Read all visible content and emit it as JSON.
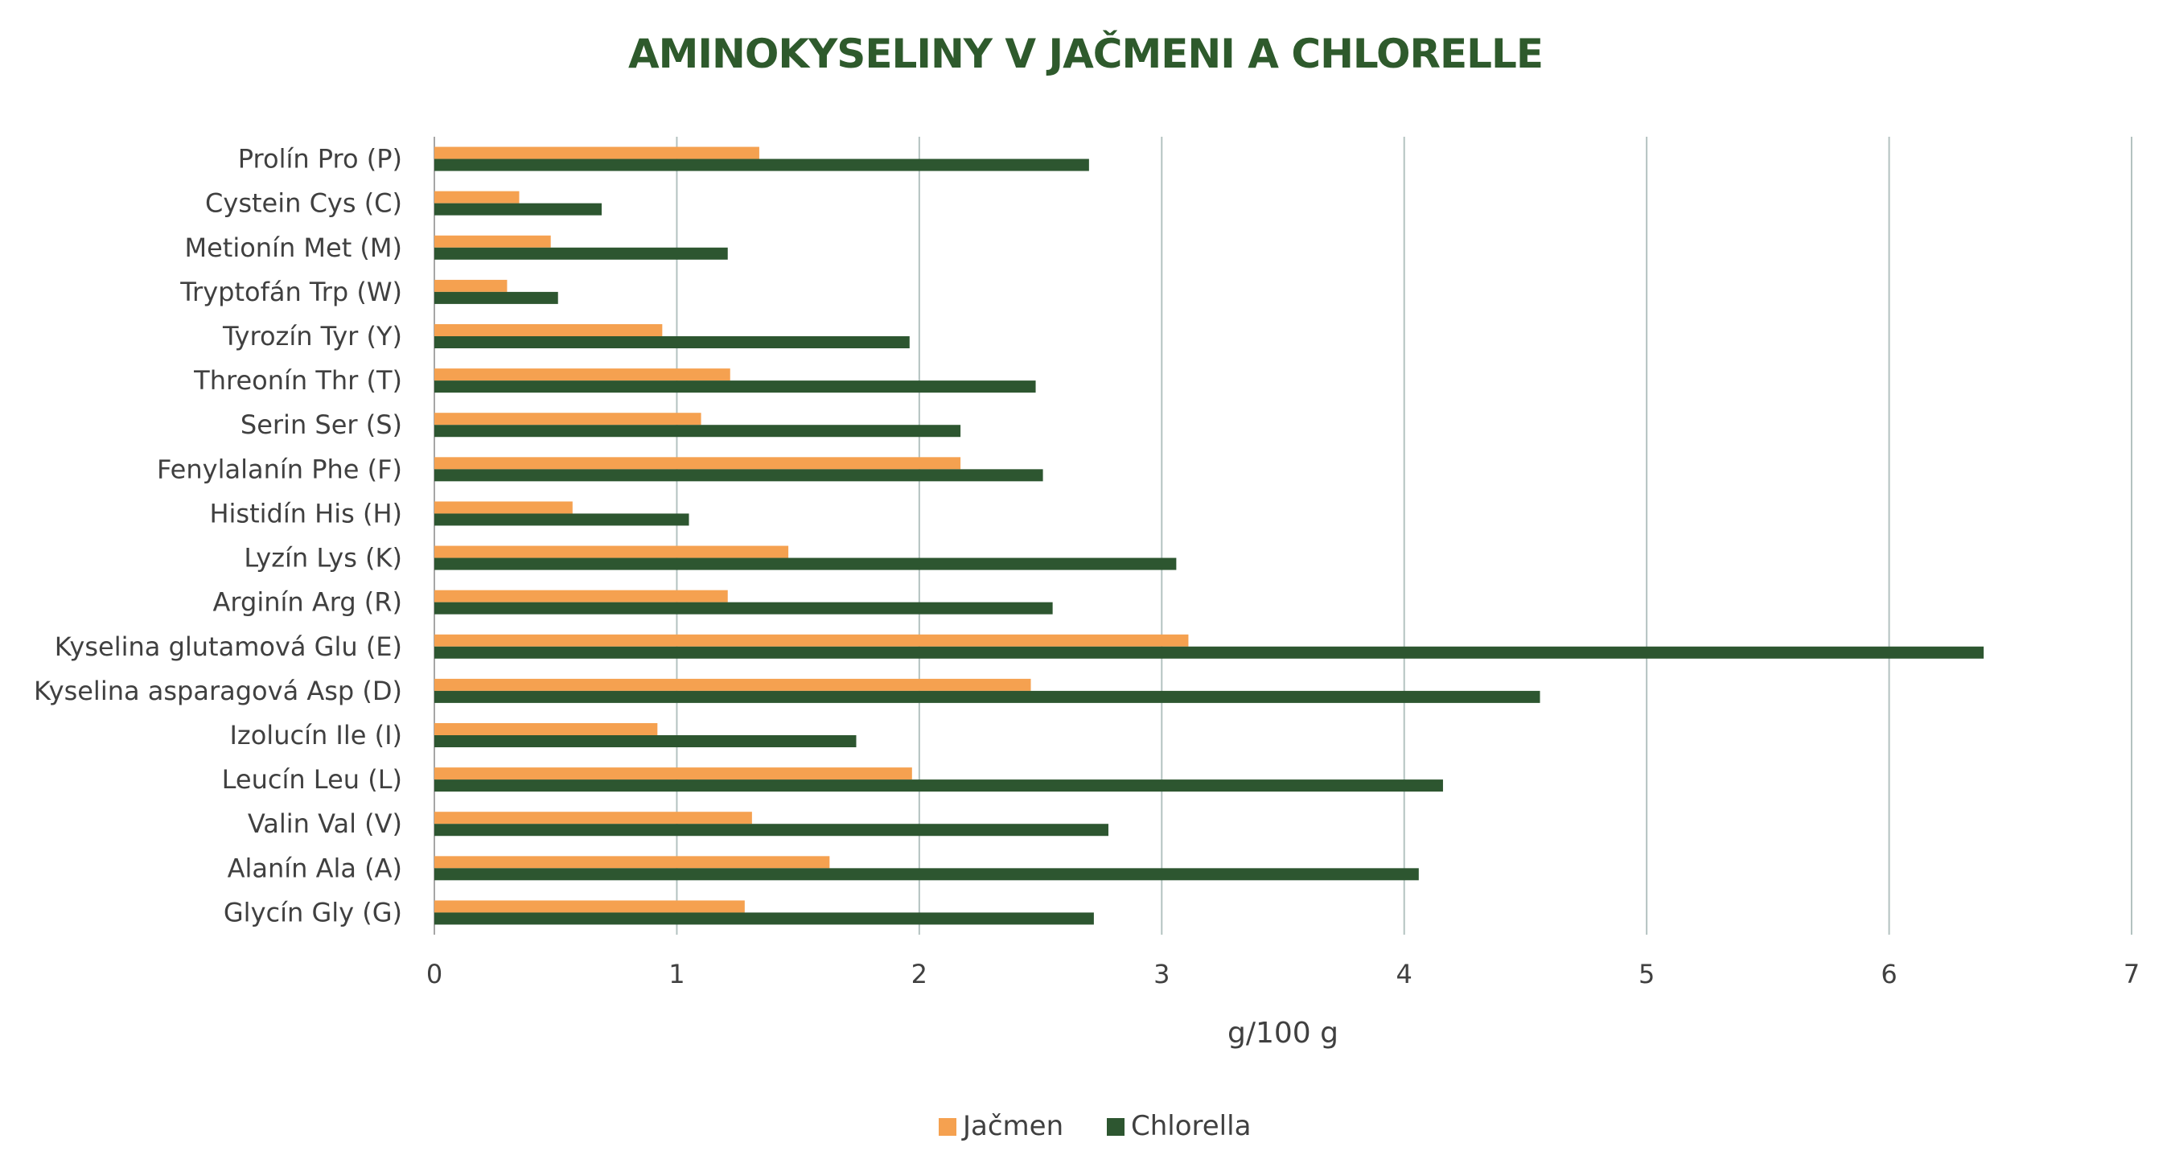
{
  "colors": {
    "title": "#2e5a2c",
    "jacmen": "#f5a150",
    "chlorella": "#2d5630",
    "grid": "#b3c2c0",
    "text": "#404040"
  },
  "chart_data": {
    "type": "bar",
    "orientation": "horizontal",
    "title": "AMINOKYSELINY V JAČMENI A CHLORELLE",
    "xlabel": "g/100 g",
    "ylabel": "",
    "xlim": [
      0,
      7
    ],
    "xticks": [
      "0",
      "1",
      "2",
      "3",
      "4",
      "5",
      "6",
      "7"
    ],
    "grid": "vertical",
    "legend_position": "bottom",
    "categories": [
      "Prolín Pro (P)",
      "Cystein Cys (C)",
      "Metionín Met (M)",
      "Tryptofán Trp (W)",
      "Tyrozín Tyr (Y)",
      "Threonín Thr (T)",
      "Serin Ser (S)",
      "Fenylalanín Phe (F)",
      "Histidín His (H)",
      "Lyzín Lys (K)",
      "Arginín Arg (R)",
      "Kyselina glutamová Glu (E)",
      "Kyselina asparagová Asp (D)",
      "Izolucín Ile (I)",
      "Leucín Leu (L)",
      "Valin Val (V)",
      "Alanín Ala (A)",
      "Glycín Gly (G)"
    ],
    "series": [
      {
        "name": "Jačmen",
        "values": [
          1.34,
          0.35,
          0.48,
          0.3,
          0.94,
          1.22,
          1.1,
          2.17,
          0.57,
          1.46,
          1.21,
          3.11,
          2.46,
          0.92,
          1.97,
          1.31,
          1.63,
          1.28
        ]
      },
      {
        "name": "Chlorella",
        "values": [
          2.7,
          0.69,
          1.21,
          0.51,
          1.96,
          2.48,
          2.17,
          2.51,
          1.05,
          3.06,
          2.55,
          6.39,
          4.56,
          1.74,
          4.16,
          2.78,
          4.06,
          2.72
        ]
      }
    ]
  }
}
